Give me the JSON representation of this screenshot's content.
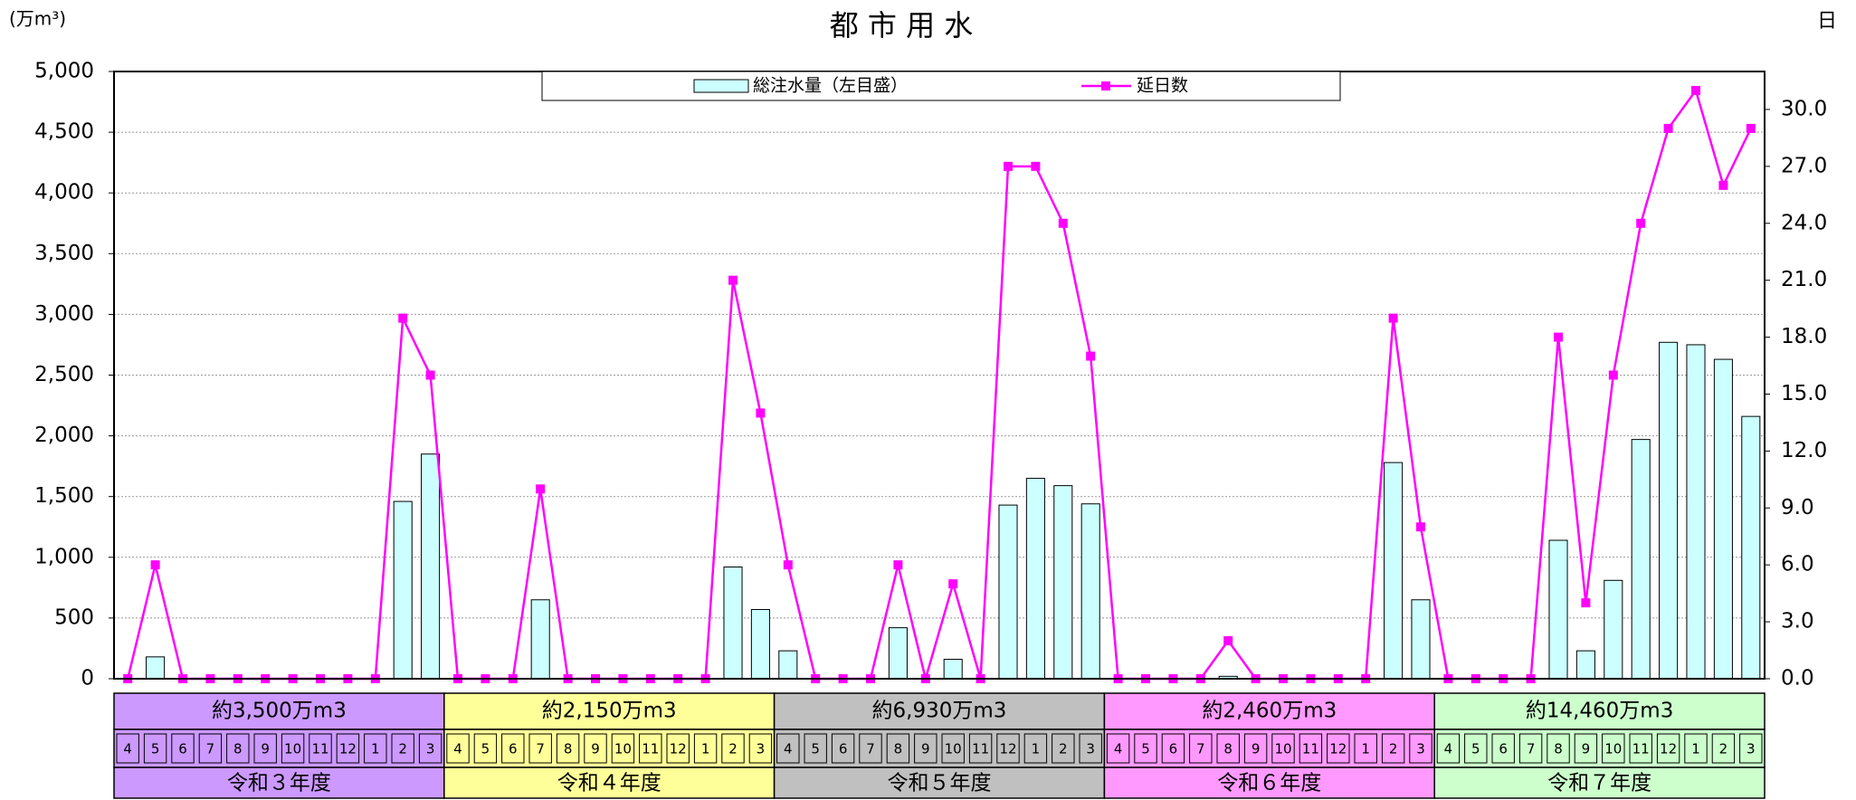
{
  "chart_data": {
    "type": "bar_line",
    "title": "都 市 用 水",
    "y_unit": "(万m³)",
    "y2_unit": "日",
    "categories": [
      "4",
      "5",
      "6",
      "7",
      "8",
      "9",
      "10",
      "11",
      "12",
      "1",
      "2",
      "3",
      "4",
      "5",
      "6",
      "7",
      "8",
      "9",
      "10",
      "11",
      "12",
      "1",
      "2",
      "3",
      "4",
      "5",
      "6",
      "7",
      "8",
      "9",
      "10",
      "11",
      "12",
      "1",
      "2",
      "3",
      "4",
      "5",
      "6",
      "7",
      "8",
      "9",
      "10",
      "11",
      "12",
      "1",
      "2",
      "3",
      "4",
      "5",
      "6",
      "7",
      "8",
      "9",
      "10",
      "11",
      "12",
      "1",
      "2",
      "3"
    ],
    "series": [
      {
        "name": "総注水量（左目盛）",
        "type": "bar",
        "color": "#ccffff",
        "values": [
          0,
          180,
          0,
          0,
          0,
          0,
          0,
          0,
          0,
          0,
          1460,
          1850,
          0,
          0,
          0,
          650,
          0,
          0,
          0,
          0,
          0,
          0,
          920,
          570,
          230,
          0,
          0,
          0,
          420,
          0,
          160,
          0,
          1430,
          1650,
          1590,
          1440,
          0,
          0,
          0,
          0,
          20,
          0,
          0,
          0,
          0,
          0,
          1780,
          650,
          0,
          0,
          0,
          0,
          1140,
          230,
          810,
          1970,
          2770,
          2750,
          2630,
          2160
        ]
      },
      {
        "name": "延日数",
        "type": "line",
        "axis": "y2",
        "color": "#ff00ff",
        "values": [
          0,
          6,
          0,
          0,
          0,
          0,
          0,
          0,
          0,
          0,
          19,
          16,
          0,
          0,
          0,
          10,
          0,
          0,
          0,
          0,
          0,
          0,
          21,
          14,
          6,
          0,
          0,
          0,
          6,
          0,
          5,
          0,
          27,
          27,
          24,
          17,
          0,
          0,
          0,
          0,
          2,
          0,
          0,
          0,
          0,
          0,
          19,
          8,
          0,
          0,
          0,
          0,
          18,
          4,
          16,
          24,
          29,
          31,
          26,
          29
        ]
      }
    ],
    "ylim": [
      0,
      5000
    ],
    "yticks": [
      0,
      500,
      {
        "value": 1000,
        "label": "1,000"
      },
      {
        "value": 1500,
        "label": "1,500"
      },
      {
        "value": 2000,
        "label": "2,000"
      },
      {
        "value": 2500,
        "label": "2,500"
      },
      {
        "value": 3000,
        "label": "3,000"
      },
      {
        "value": 3500,
        "label": "3,500"
      },
      {
        "value": 4000,
        "label": "4,000"
      },
      {
        "value": 4500,
        "label": "4,500"
      },
      {
        "value": 5000,
        "label": "5,000"
      }
    ],
    "y2lim": [
      0,
      32
    ],
    "y2ticks": [
      {
        "value": 0,
        "label": "0.0"
      },
      {
        "value": 3,
        "label": "3.0"
      },
      {
        "value": 6,
        "label": "6.0"
      },
      {
        "value": 9,
        "label": "9.0"
      },
      {
        "value": 12,
        "label": "12.0"
      },
      {
        "value": 15,
        "label": "15.0"
      },
      {
        "value": 18,
        "label": "18.0"
      },
      {
        "value": 21,
        "label": "21.0"
      },
      {
        "value": 24,
        "label": "24.0"
      },
      {
        "value": 27,
        "label": "27.0"
      },
      {
        "value": 30,
        "label": "30.0"
      }
    ],
    "grid": true,
    "legend": "top",
    "fiscal_years": [
      {
        "name": "令和３年度",
        "total": "約3,500万m3",
        "color": "#cc99ff"
      },
      {
        "name": "令和４年度",
        "total": "約2,150万m3",
        "color": "#ffff99"
      },
      {
        "name": "令和５年度",
        "total": "約6,930万m3",
        "color": "#c0c0c0"
      },
      {
        "name": "令和６年度",
        "total": "約2,460万m3",
        "color": "#ff99ff"
      },
      {
        "name": "令和７年度",
        "total": "約14,460万m3",
        "color": "#ccffcc"
      }
    ]
  }
}
